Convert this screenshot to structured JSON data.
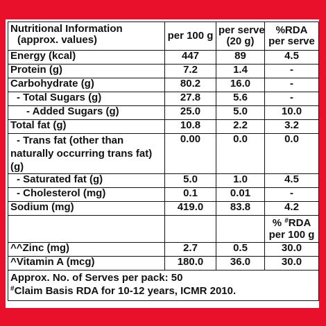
{
  "header": {
    "title_line1": "Nutritional Information",
    "title_line2": "(approx. values)",
    "col_per100": "per 100 g",
    "col_serve_line1": "per serve",
    "col_serve_line2": "(20 g)",
    "col_rda_line1": "%RDA",
    "col_rda_line2": "per serve"
  },
  "rows": [
    {
      "label": "Energy (kcal)",
      "per100": "447",
      "serve": "89",
      "rda": "4.5"
    },
    {
      "label": "Protein (g)",
      "per100": "7.2",
      "serve": "1.4",
      "rda": "-"
    },
    {
      "label": "Carbohydrate (g)",
      "per100": "80.2",
      "serve": "16.0",
      "rda": "-"
    },
    {
      "label": "- Total Sugars (g)",
      "per100": "27.8",
      "serve": "5.6",
      "rda": "-"
    },
    {
      "label": "- Added Sugars (g)",
      "per100": "25.0",
      "serve": "5.0",
      "rda": "10.0"
    },
    {
      "label": "Total fat (g)",
      "per100": "10.8",
      "serve": "2.2",
      "rda": "3.2"
    },
    {
      "label_line1": "- Trans fat (other than",
      "label_line2": "naturally occurring trans fat) (g)",
      "per100": "0.00",
      "serve": "0.0",
      "rda": "0.0"
    },
    {
      "label": "- Saturated fat (g)",
      "per100": "5.0",
      "serve": "1.0",
      "rda": "4.5"
    },
    {
      "label": "- Cholesterol (mg)",
      "per100": "0.1",
      "serve": "0.01",
      "rda": "-"
    },
    {
      "label": "Sodium (mg)",
      "per100": "419.0",
      "serve": "83.8",
      "rda": "4.2"
    }
  ],
  "rda_per100_header": {
    "line1_prefix": "% ",
    "line1_sup": "#",
    "line1_suffix": "RDA",
    "line2": "per 100 g"
  },
  "micro_rows": [
    {
      "label": "^^Zinc (mg)",
      "per100": "2.7",
      "serve": "0.5",
      "rda": "30.0"
    },
    {
      "label": "^Vitamin A (mcg)",
      "per100": "180.0",
      "serve": "36.0",
      "rda": "30.0"
    }
  ],
  "footer": {
    "serves_note": "Approx. No. of Serves per pack: 50",
    "claim_sup": "#",
    "claim_note": "Claim Basis RDA for 10-12 years, ICMR 2010."
  },
  "colors": {
    "background": "#e8102a",
    "panel": "#ffffff",
    "text": "#111111"
  }
}
